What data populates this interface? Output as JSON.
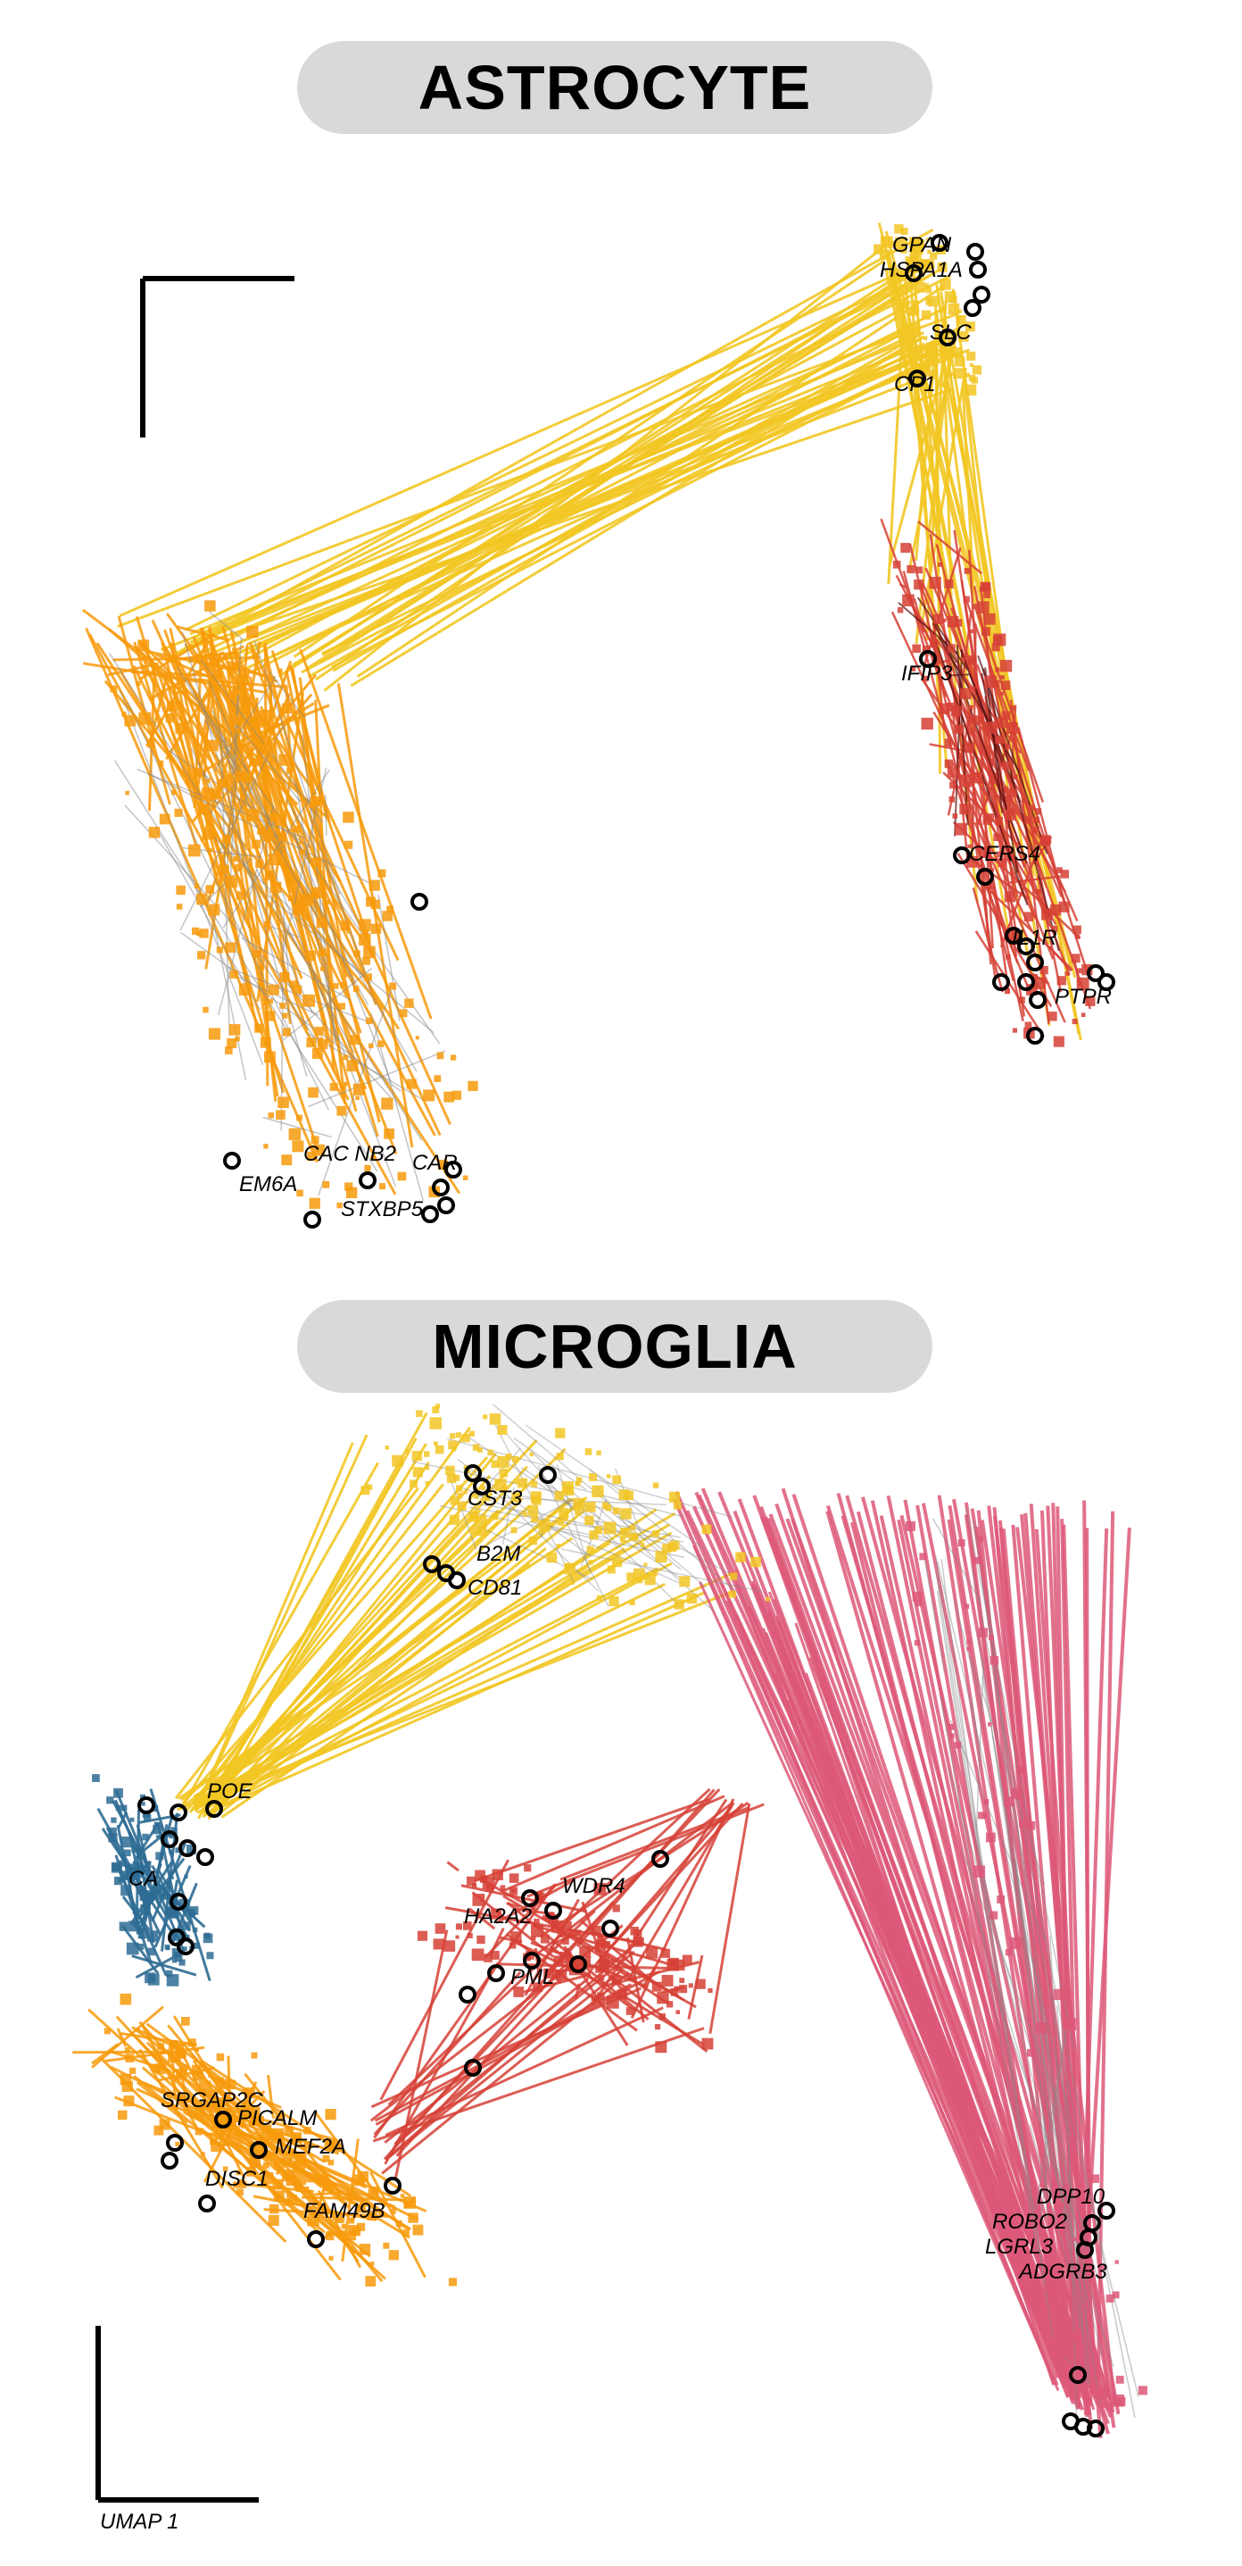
{
  "panels": {
    "astrocyte": {
      "title": "ASTROCYTE"
    },
    "microglia": {
      "title": "MICROGLIA"
    }
  },
  "colors": {
    "yellow": "#f2c623",
    "orange": "#f79a0c",
    "red": "#d64136",
    "blue": "#2e6c94",
    "pink": "#dd5878",
    "edge_grey": "#8a8a8a",
    "title_bg": "#d9d9d9"
  },
  "astrocyte_labels": [
    "GPAN",
    "HSPA1A",
    "SLC",
    "CP1",
    "IFIP3",
    "CERS4",
    "IL1R",
    "PTPR",
    "CAC NB2",
    "CAR",
    "STXBP5",
    "EM6A"
  ],
  "microglia_labels": [
    "CST3",
    "B2M",
    "CD81",
    "POE",
    "CA",
    "WDR4",
    "PML",
    "HA2A2",
    "SRGAP2C",
    "PICALM",
    "MEF2A",
    "DISC1",
    "FAM49B",
    "DPP10",
    "ROBO2",
    "LGRL3",
    "ADGRB3",
    "UMAP 1"
  ]
}
